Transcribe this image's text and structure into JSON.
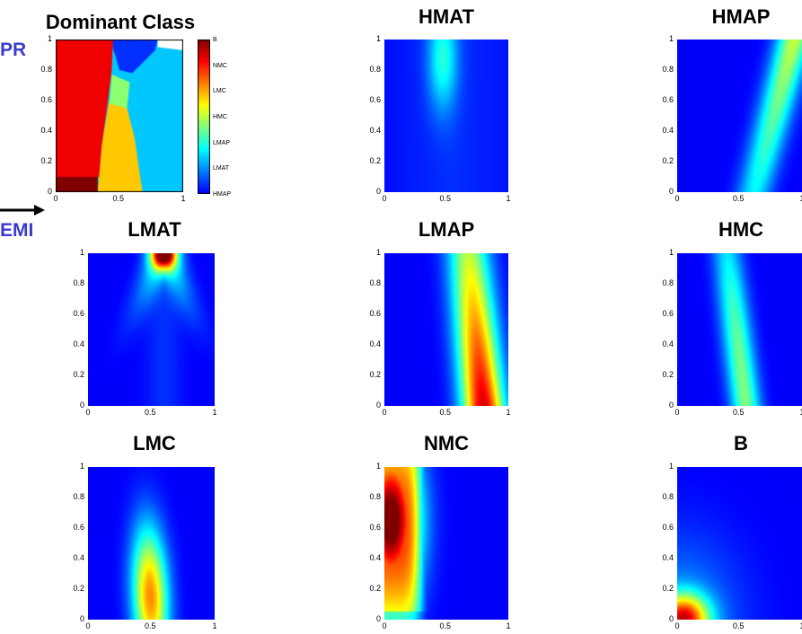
{
  "side_labels": {
    "top": "PR",
    "bottom": "EMI"
  },
  "colormap": "jet",
  "chart_data": [
    {
      "type": "heatmap",
      "title": "Dominant Class",
      "xlim": [
        0,
        1
      ],
      "ylim": [
        0,
        1
      ],
      "xticks": [
        "0",
        "0.5",
        "1"
      ],
      "yticks": [
        "0",
        "0.2",
        "0.4",
        "0.6",
        "0.8",
        "1"
      ],
      "colorbar": [
        "B",
        "NMC",
        "LMC",
        "HMC",
        "LMAP",
        "LMAT",
        "HMAP"
      ],
      "regions": [
        {
          "class": "B",
          "color": "#800000",
          "x": [
            0,
            0.33
          ],
          "y": [
            0,
            0.1
          ]
        },
        {
          "class": "NMC",
          "color": "#f00000",
          "x": [
            0,
            0.45
          ],
          "y": [
            0.1,
            1.0
          ]
        },
        {
          "class": "LMC",
          "color": "#ffc800",
          "x": [
            0.33,
            0.68
          ],
          "y": [
            0,
            0.58
          ]
        },
        {
          "class": "HMC",
          "color": "#8cff70",
          "x": [
            0.42,
            0.58
          ],
          "y": [
            0.55,
            0.77
          ]
        },
        {
          "class": "LMAP",
          "color": "#00c8ff",
          "x": [
            0.55,
            1.0
          ],
          "y": [
            0,
            0.93
          ]
        },
        {
          "class": "HMAP",
          "color": "#0030ff",
          "x": [
            0.43,
            0.8
          ],
          "y": [
            0.85,
            1.0
          ]
        }
      ]
    },
    {
      "type": "heatmap",
      "title": "HMAT",
      "xlim": [
        0,
        1
      ],
      "ylim": [
        0,
        1
      ],
      "xticks": [
        "0",
        "0.5",
        "1"
      ],
      "yticks": [
        "0",
        "0.2",
        "0.4",
        "0.6",
        "0.8",
        "1"
      ],
      "peak": {
        "x": 0.47,
        "y": 0.88,
        "intensity": 0.25
      }
    },
    {
      "type": "heatmap",
      "title": "HMAP",
      "xlim": [
        0,
        1
      ],
      "ylim": [
        0,
        1
      ],
      "xticks": [
        "0",
        "0.5",
        "1"
      ],
      "yticks": [
        "0",
        "0.2",
        "0.4",
        "0.6",
        "0.8",
        "1"
      ],
      "peak": {
        "x": 0.92,
        "y": 0.95,
        "intensity": 0.45
      }
    },
    {
      "type": "heatmap",
      "title": "LMAT",
      "xlim": [
        0,
        1
      ],
      "ylim": [
        0,
        1
      ],
      "xticks": [
        "0",
        "0.5",
        "1"
      ],
      "yticks": [
        "0",
        "0.2",
        "0.4",
        "0.6",
        "0.8",
        "1"
      ],
      "peak": {
        "x": 0.6,
        "y": 1.0,
        "intensity": 0.75
      }
    },
    {
      "type": "heatmap",
      "title": "LMAP",
      "xlim": [
        0,
        1
      ],
      "ylim": [
        0,
        1
      ],
      "xticks": [
        "0",
        "0.5",
        "1"
      ],
      "yticks": [
        "0",
        "0.2",
        "0.4",
        "0.6",
        "0.8",
        "1"
      ],
      "peak": {
        "x": 0.85,
        "y": 0.25,
        "intensity": 0.8
      }
    },
    {
      "type": "heatmap",
      "title": "HMC",
      "xlim": [
        0,
        1
      ],
      "ylim": [
        0,
        1
      ],
      "xticks": [
        "0",
        "0.5",
        "1"
      ],
      "yticks": [
        "0",
        "0.2",
        "0.4",
        "0.6",
        "0.8",
        "1"
      ],
      "peak": {
        "x": 0.5,
        "y": 0.5,
        "intensity": 0.38
      }
    },
    {
      "type": "heatmap",
      "title": "LMC",
      "xlim": [
        0,
        1
      ],
      "ylim": [
        0,
        1
      ],
      "xticks": [
        "0",
        "0.5",
        "1"
      ],
      "yticks": [
        "0",
        "0.2",
        "0.4",
        "0.6",
        "0.8",
        "1"
      ],
      "peak": {
        "x": 0.5,
        "y": 0.15,
        "intensity": 0.62
      }
    },
    {
      "type": "heatmap",
      "title": "NMC",
      "xlim": [
        0,
        1
      ],
      "ylim": [
        0,
        1
      ],
      "xticks": [
        "0",
        "0.5",
        "1"
      ],
      "yticks": [
        "0",
        "0.2",
        "0.4",
        "0.6",
        "0.8",
        "1"
      ],
      "peak": {
        "x": 0.1,
        "y": 0.65,
        "intensity": 0.95
      }
    },
    {
      "type": "heatmap",
      "title": "B",
      "xlim": [
        0,
        1
      ],
      "ylim": [
        0,
        1
      ],
      "xticks": [
        "0",
        "0.5",
        "1"
      ],
      "yticks": [
        "0",
        "0.2",
        "0.4",
        "0.6",
        "0.8",
        "1"
      ],
      "peak": {
        "x": 0.05,
        "y": 0.0,
        "intensity": 0.68
      }
    }
  ]
}
